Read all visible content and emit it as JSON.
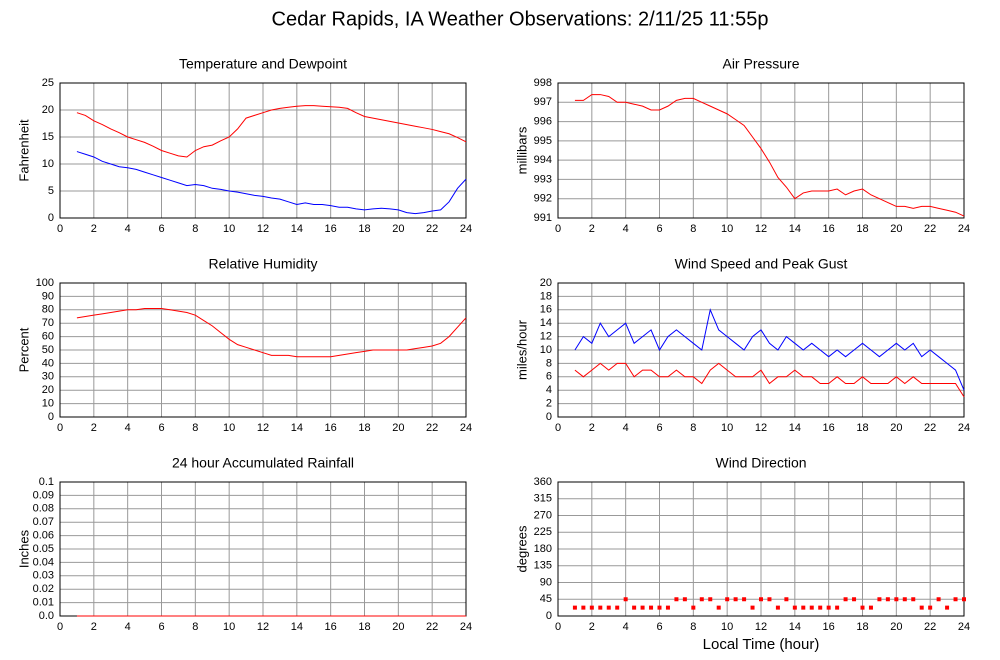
{
  "title": "Cedar Rapids, IA Weather Observations: 2/11/25 11:55p",
  "chart_data": [
    {
      "type": "line",
      "title": "Temperature and Dewpoint",
      "ylabel": "Fahrenheit",
      "xlim": [
        0,
        24
      ],
      "xticks": [
        0,
        2,
        4,
        6,
        8,
        10,
        12,
        14,
        16,
        18,
        20,
        22,
        24
      ],
      "ylim": [
        0,
        25
      ],
      "yticks": [
        0,
        5,
        10,
        15,
        20,
        25
      ],
      "grid": true,
      "x": [
        1,
        1.5,
        2,
        2.5,
        3,
        3.5,
        4,
        4.5,
        5,
        5.5,
        6,
        6.5,
        7,
        7.5,
        8,
        8.5,
        9,
        9.5,
        10,
        10.5,
        11,
        11.5,
        12,
        12.5,
        13,
        13.5,
        14,
        14.5,
        15,
        15.5,
        16,
        16.5,
        17,
        17.5,
        18,
        18.5,
        19,
        19.5,
        20,
        20.5,
        21,
        21.5,
        22,
        22.5,
        23,
        23.5,
        24
      ],
      "series": [
        {
          "color": "#ff0000",
          "values": [
            19.5,
            19,
            18,
            17.3,
            16.5,
            15.8,
            15,
            14.5,
            14,
            13.3,
            12.5,
            12,
            11.5,
            11.3,
            12.5,
            13.2,
            13.5,
            14.3,
            15,
            16.5,
            18.5,
            19,
            19.5,
            20,
            20.3,
            20.5,
            20.7,
            20.8,
            20.8,
            20.7,
            20.6,
            20.5,
            20.3,
            19.5,
            18.8,
            18.5,
            18.2,
            17.9,
            17.6,
            17.3,
            17,
            16.7,
            16.4,
            16,
            15.6,
            14.9,
            14.1
          ]
        },
        {
          "color": "#0000ff",
          "values": [
            12.3,
            11.8,
            11.3,
            10.5,
            10,
            9.5,
            9.3,
            9,
            8.5,
            8,
            7.5,
            7,
            6.5,
            6,
            6.2,
            6,
            5.5,
            5.3,
            5,
            4.8,
            4.5,
            4.2,
            4,
            3.7,
            3.5,
            3,
            2.5,
            2.8,
            2.5,
            2.5,
            2.3,
            2,
            2,
            1.7,
            1.5,
            1.7,
            1.8,
            1.7,
            1.5,
            1,
            0.8,
            1,
            1.3,
            1.5,
            3,
            5.5,
            7.2
          ]
        }
      ]
    },
    {
      "type": "line",
      "title": "Air Pressure",
      "ylabel": "millibars",
      "xlim": [
        0,
        24
      ],
      "xticks": [
        0,
        2,
        4,
        6,
        8,
        10,
        12,
        14,
        16,
        18,
        20,
        22,
        24
      ],
      "ylim": [
        991,
        998
      ],
      "yticks": [
        991,
        992,
        993,
        994,
        995,
        996,
        997,
        998
      ],
      "grid": true,
      "x": [
        1,
        1.5,
        2,
        2.5,
        3,
        3.5,
        4,
        4.5,
        5,
        5.5,
        6,
        6.5,
        7,
        7.5,
        8,
        8.5,
        9,
        9.5,
        10,
        10.5,
        11,
        11.5,
        12,
        12.5,
        13,
        13.5,
        14,
        14.5,
        15,
        15.5,
        16,
        16.5,
        17,
        17.5,
        18,
        18.5,
        19,
        19.5,
        20,
        20.5,
        21,
        21.5,
        22,
        22.5,
        23,
        23.5,
        24
      ],
      "series": [
        {
          "color": "#ff0000",
          "values": [
            997.1,
            997.1,
            997.4,
            997.4,
            997.3,
            997.0,
            997.0,
            996.9,
            996.8,
            996.6,
            996.6,
            996.8,
            997.1,
            997.2,
            997.2,
            997.0,
            996.8,
            996.6,
            996.4,
            996.1,
            995.8,
            995.2,
            994.6,
            993.9,
            993.1,
            992.6,
            992.0,
            992.3,
            992.4,
            992.4,
            992.4,
            992.5,
            992.2,
            992.4,
            992.5,
            992.2,
            992.0,
            991.8,
            991.6,
            991.6,
            991.5,
            991.6,
            991.6,
            991.5,
            991.4,
            991.3,
            991.1
          ]
        }
      ]
    },
    {
      "type": "line",
      "title": "Relative Humidity",
      "ylabel": "Percent",
      "xlim": [
        0,
        24
      ],
      "xticks": [
        0,
        2,
        4,
        6,
        8,
        10,
        12,
        14,
        16,
        18,
        20,
        22,
        24
      ],
      "ylim": [
        0,
        100
      ],
      "yticks": [
        0,
        10,
        20,
        30,
        40,
        50,
        60,
        70,
        80,
        90,
        100
      ],
      "grid": true,
      "x": [
        1,
        1.5,
        2,
        2.5,
        3,
        3.5,
        4,
        4.5,
        5,
        5.5,
        6,
        6.5,
        7,
        7.5,
        8,
        8.5,
        9,
        9.5,
        10,
        10.5,
        11,
        11.5,
        12,
        12.5,
        13,
        13.5,
        14,
        14.5,
        15,
        15.5,
        16,
        16.5,
        17,
        17.5,
        18,
        18.5,
        19,
        19.5,
        20,
        20.5,
        21,
        21.5,
        22,
        22.5,
        23,
        23.5,
        24
      ],
      "series": [
        {
          "color": "#ff0000",
          "values": [
            74,
            75,
            76,
            77,
            78,
            79,
            80,
            80,
            81,
            81,
            81,
            80,
            79,
            78,
            76,
            72,
            68,
            63,
            58,
            54,
            52,
            50,
            48,
            46,
            46,
            46,
            45,
            45,
            45,
            45,
            45,
            46,
            47,
            48,
            49,
            50,
            50,
            50,
            50,
            50,
            51,
            52,
            53,
            55,
            60,
            67,
            74
          ]
        }
      ]
    },
    {
      "type": "line",
      "title": "Wind Speed and Peak Gust",
      "ylabel": "miles/hour",
      "xlim": [
        0,
        24
      ],
      "xticks": [
        0,
        2,
        4,
        6,
        8,
        10,
        12,
        14,
        16,
        18,
        20,
        22,
        24
      ],
      "ylim": [
        0,
        20
      ],
      "yticks": [
        0,
        2,
        4,
        6,
        8,
        10,
        12,
        14,
        16,
        18,
        20
      ],
      "grid": true,
      "x": [
        1,
        1.5,
        2,
        2.5,
        3,
        3.5,
        4,
        4.5,
        5,
        5.5,
        6,
        6.5,
        7,
        7.5,
        8,
        8.5,
        9,
        9.5,
        10,
        10.5,
        11,
        11.5,
        12,
        12.5,
        13,
        13.5,
        14,
        14.5,
        15,
        15.5,
        16,
        16.5,
        17,
        17.5,
        18,
        18.5,
        19,
        19.5,
        20,
        20.5,
        21,
        21.5,
        22,
        22.5,
        23,
        23.5,
        24
      ],
      "series": [
        {
          "color": "#0000ff",
          "values": [
            10,
            12,
            11,
            14,
            12,
            13,
            14,
            11,
            12,
            13,
            10,
            12,
            13,
            12,
            11,
            10,
            16,
            13,
            12,
            11,
            10,
            12,
            13,
            11,
            10,
            12,
            11,
            10,
            11,
            10,
            9,
            10,
            9,
            10,
            11,
            10,
            9,
            10,
            11,
            10,
            11,
            9,
            10,
            9,
            8,
            7,
            4
          ]
        },
        {
          "color": "#ff0000",
          "values": [
            7,
            6,
            7,
            8,
            7,
            8,
            8,
            6,
            7,
            7,
            6,
            6,
            7,
            6,
            6,
            5,
            7,
            8,
            7,
            6,
            6,
            6,
            7,
            5,
            6,
            6,
            7,
            6,
            6,
            5,
            5,
            6,
            5,
            5,
            6,
            5,
            5,
            5,
            6,
            5,
            6,
            5,
            5,
            5,
            5,
            5,
            3
          ]
        }
      ]
    },
    {
      "type": "line",
      "title": "24 hour Accumulated Rainfall",
      "ylabel": "Inches",
      "xlim": [
        0,
        24
      ],
      "xticks": [
        0,
        2,
        4,
        6,
        8,
        10,
        12,
        14,
        16,
        18,
        20,
        22,
        24
      ],
      "ylim": [
        0,
        0.1
      ],
      "yticks": [
        {
          "value": 0,
          "label": "0.0"
        },
        0.01,
        0.02,
        0.03,
        0.04,
        0.05,
        0.06,
        0.07,
        0.08,
        0.09,
        0.1
      ],
      "grid": true,
      "x": [
        1,
        24
      ],
      "series": [
        {
          "color": "#ff0000",
          "values": [
            0,
            0
          ]
        }
      ]
    },
    {
      "type": "scatter",
      "title": "Wind Direction",
      "ylabel": "degrees",
      "xlabel": "Local Time (hour)",
      "xlim": [
        0,
        24
      ],
      "xticks": [
        0,
        2,
        4,
        6,
        8,
        10,
        12,
        14,
        16,
        18,
        20,
        22,
        24
      ],
      "ylim": [
        0,
        360
      ],
      "yticks": [
        0,
        45,
        90,
        135,
        180,
        225,
        270,
        315,
        360
      ],
      "grid": true,
      "x": [
        1,
        1.5,
        2,
        2.5,
        3,
        3.5,
        4,
        4.5,
        5,
        5.5,
        6,
        6.5,
        7,
        7.5,
        8,
        8.5,
        9,
        9.5,
        10,
        10.5,
        11,
        11.5,
        12,
        12.5,
        13,
        13.5,
        14,
        14.5,
        15,
        15.5,
        16,
        16.5,
        17,
        17.5,
        18,
        18.5,
        19,
        19.5,
        20,
        20.5,
        21,
        21.5,
        22,
        22.5,
        23,
        23.5,
        24
      ],
      "series": [
        {
          "color": "#ff0000",
          "values": [
            22.5,
            22.5,
            22.5,
            22.5,
            22.5,
            22.5,
            45,
            22.5,
            22.5,
            22.5,
            22.5,
            22.5,
            45,
            45,
            22.5,
            45,
            45,
            22.5,
            45,
            45,
            45,
            22.5,
            45,
            45,
            22.5,
            45,
            22.5,
            22.5,
            22.5,
            22.5,
            22.5,
            22.5,
            45,
            45,
            22.5,
            22.5,
            45,
            45,
            45,
            45,
            45,
            22.5,
            22.5,
            45,
            22.5,
            45,
            45
          ]
        }
      ]
    }
  ]
}
